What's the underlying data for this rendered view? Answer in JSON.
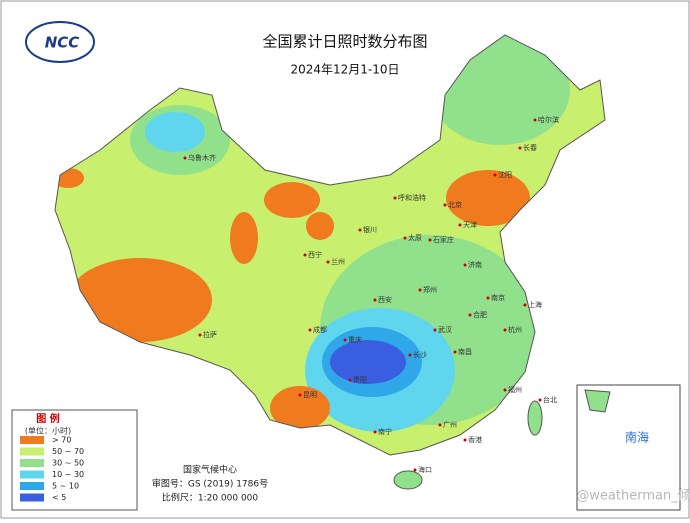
{
  "logo": "NCC",
  "title": "全国累计日照时数分布图",
  "subtitle": "2024年12月1-10日",
  "legend": {
    "title": "图 例",
    "unit": "(单位：小时)",
    "items": [
      {
        "label": "> 70",
        "color": "#f07a1e"
      },
      {
        "label": "50 ~ 70",
        "color": "#c8ef6e"
      },
      {
        "label": "30 ~ 50",
        "color": "#90e08c"
      },
      {
        "label": "10 ~ 30",
        "color": "#5fd6ee"
      },
      {
        "label": "5 ~ 10",
        "color": "#2fa7e8"
      },
      {
        "label": "< 5",
        "color": "#3a5ee0"
      }
    ]
  },
  "credits": [
    "国家气候中心",
    "审图号：GS (2019) 1786号",
    "比例尺：1:20 000 000"
  ],
  "inset_label": "南海",
  "watermark": "@weatherman_倾城",
  "cities": [
    "乌鲁木齐",
    "拉萨",
    "西宁",
    "兰州",
    "银川",
    "呼和浩特",
    "北京",
    "天津",
    "石家庄",
    "太原",
    "济南",
    "郑州",
    "西安",
    "成都",
    "重庆",
    "贵阳",
    "昆明",
    "南宁",
    "武汉",
    "长沙",
    "南昌",
    "合肥",
    "南京",
    "上海",
    "杭州",
    "福州",
    "广州",
    "香港",
    "海口",
    "台北",
    "沈阳",
    "长春",
    "哈尔滨"
  ]
}
